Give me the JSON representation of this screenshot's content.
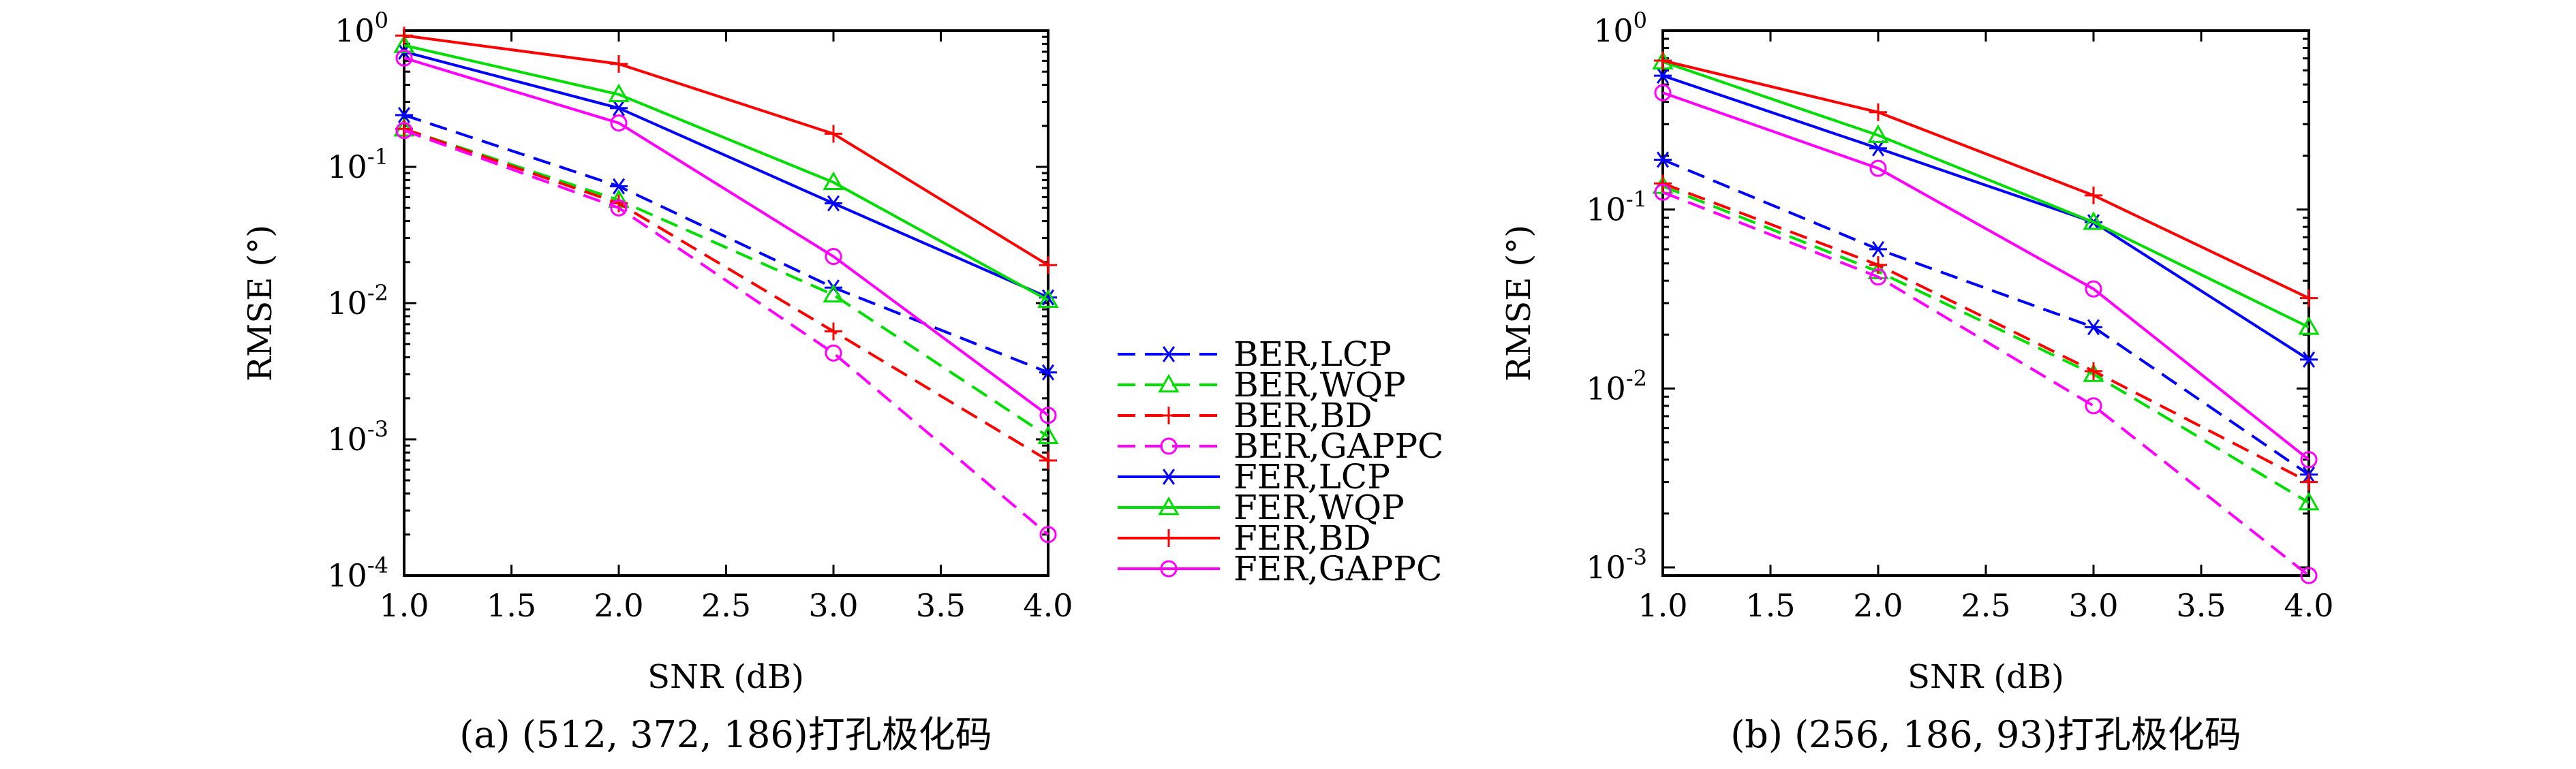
{
  "colors": {
    "LCP": "#0000ff",
    "WQP": "#00dd00",
    "BD": "#ff0000",
    "GAPPC": "#ff00ff"
  },
  "legend": [
    {
      "label": "BER,LCP",
      "color": "#0000ff",
      "marker": "asterisk",
      "dash": true
    },
    {
      "label": "BER,WQP",
      "color": "#00dd00",
      "marker": "triangle",
      "dash": true
    },
    {
      "label": "BER,BD",
      "color": "#ff0000",
      "marker": "plus",
      "dash": true
    },
    {
      "label": "BER,GAPPC",
      "color": "#ff00ff",
      "marker": "circle",
      "dash": true
    },
    {
      "label": "FER,LCP",
      "color": "#0000ff",
      "marker": "asterisk",
      "dash": false
    },
    {
      "label": "FER,WQP",
      "color": "#00dd00",
      "marker": "triangle",
      "dash": false
    },
    {
      "label": "FER,BD",
      "color": "#ff0000",
      "marker": "plus",
      "dash": false
    },
    {
      "label": "FER,GAPPC",
      "color": "#ff00ff",
      "marker": "circle",
      "dash": false
    }
  ],
  "chart_data": [
    {
      "type": "line",
      "caption": "(a) (512, 372, 186)打孔极化码",
      "xlabel": "SNR (dB)",
      "ylabel": "RMSE (°)",
      "yscale": "log",
      "xlim": [
        1.0,
        4.0
      ],
      "ylim": [
        0.0001,
        1
      ],
      "xticks": [
        "1.0",
        "1.5",
        "2.0",
        "2.5",
        "3.0",
        "3.5",
        "4.0"
      ],
      "yticks": [
        {
          "base": "10",
          "exp": "0",
          "value": 1
        },
        {
          "base": "10",
          "exp": "-1",
          "value": 0.1
        },
        {
          "base": "10",
          "exp": "-2",
          "value": 0.01
        },
        {
          "base": "10",
          "exp": "-3",
          "value": 0.001
        },
        {
          "base": "10",
          "exp": "-4",
          "value": 0.0001
        }
      ],
      "x": [
        1.0,
        2.0,
        3.0,
        4.0
      ],
      "series": [
        {
          "name": "BER,LCP",
          "values": [
            0.24,
            0.072,
            0.013,
            0.0031
          ]
        },
        {
          "name": "BER,WQP",
          "values": [
            0.19,
            0.057,
            0.0115,
            0.00105
          ]
        },
        {
          "name": "BER,BD",
          "values": [
            0.19,
            0.054,
            0.0062,
            0.0007
          ]
        },
        {
          "name": "BER,GAPPC",
          "values": [
            0.185,
            0.05,
            0.0043,
            0.0002
          ]
        },
        {
          "name": "FER,LCP",
          "values": [
            0.7,
            0.27,
            0.054,
            0.011
          ]
        },
        {
          "name": "FER,WQP",
          "values": [
            0.78,
            0.34,
            0.077,
            0.0105
          ]
        },
        {
          "name": "FER,BD",
          "values": [
            0.92,
            0.57,
            0.175,
            0.019
          ]
        },
        {
          "name": "FER,GAPPC",
          "values": [
            0.63,
            0.21,
            0.022,
            0.0015
          ]
        }
      ]
    },
    {
      "type": "line",
      "caption": "(b) (256, 186, 93)打孔极化码",
      "xlabel": "SNR (dB)",
      "ylabel": "RMSE (°)",
      "yscale": "log",
      "xlim": [
        1.0,
        4.0
      ],
      "ylim": [
        0.0009,
        1
      ],
      "xticks": [
        "1.0",
        "1.5",
        "2.0",
        "2.5",
        "3.0",
        "3.5",
        "4.0"
      ],
      "yticks": [
        {
          "base": "10",
          "exp": "0",
          "value": 1
        },
        {
          "base": "10",
          "exp": "-1",
          "value": 0.1
        },
        {
          "base": "10",
          "exp": "-2",
          "value": 0.01
        },
        {
          "base": "10",
          "exp": "-3",
          "value": 0.001
        }
      ],
      "x": [
        1.0,
        2.0,
        3.0,
        4.0
      ],
      "series": [
        {
          "name": "BER,LCP",
          "values": [
            0.19,
            0.06,
            0.022,
            0.0033
          ]
        },
        {
          "name": "BER,WQP",
          "values": [
            0.135,
            0.045,
            0.012,
            0.0023
          ]
        },
        {
          "name": "BER,BD",
          "values": [
            0.14,
            0.049,
            0.0125,
            0.003
          ]
        },
        {
          "name": "BER,GAPPC",
          "values": [
            0.125,
            0.042,
            0.008,
            0.0009
          ]
        },
        {
          "name": "FER,LCP",
          "values": [
            0.56,
            0.22,
            0.085,
            0.0145
          ]
        },
        {
          "name": "FER,WQP",
          "values": [
            0.67,
            0.26,
            0.085,
            0.022
          ]
        },
        {
          "name": "FER,BD",
          "values": [
            0.68,
            0.35,
            0.12,
            0.032
          ]
        },
        {
          "name": "FER,GAPPC",
          "values": [
            0.45,
            0.17,
            0.036,
            0.004
          ]
        }
      ]
    }
  ]
}
